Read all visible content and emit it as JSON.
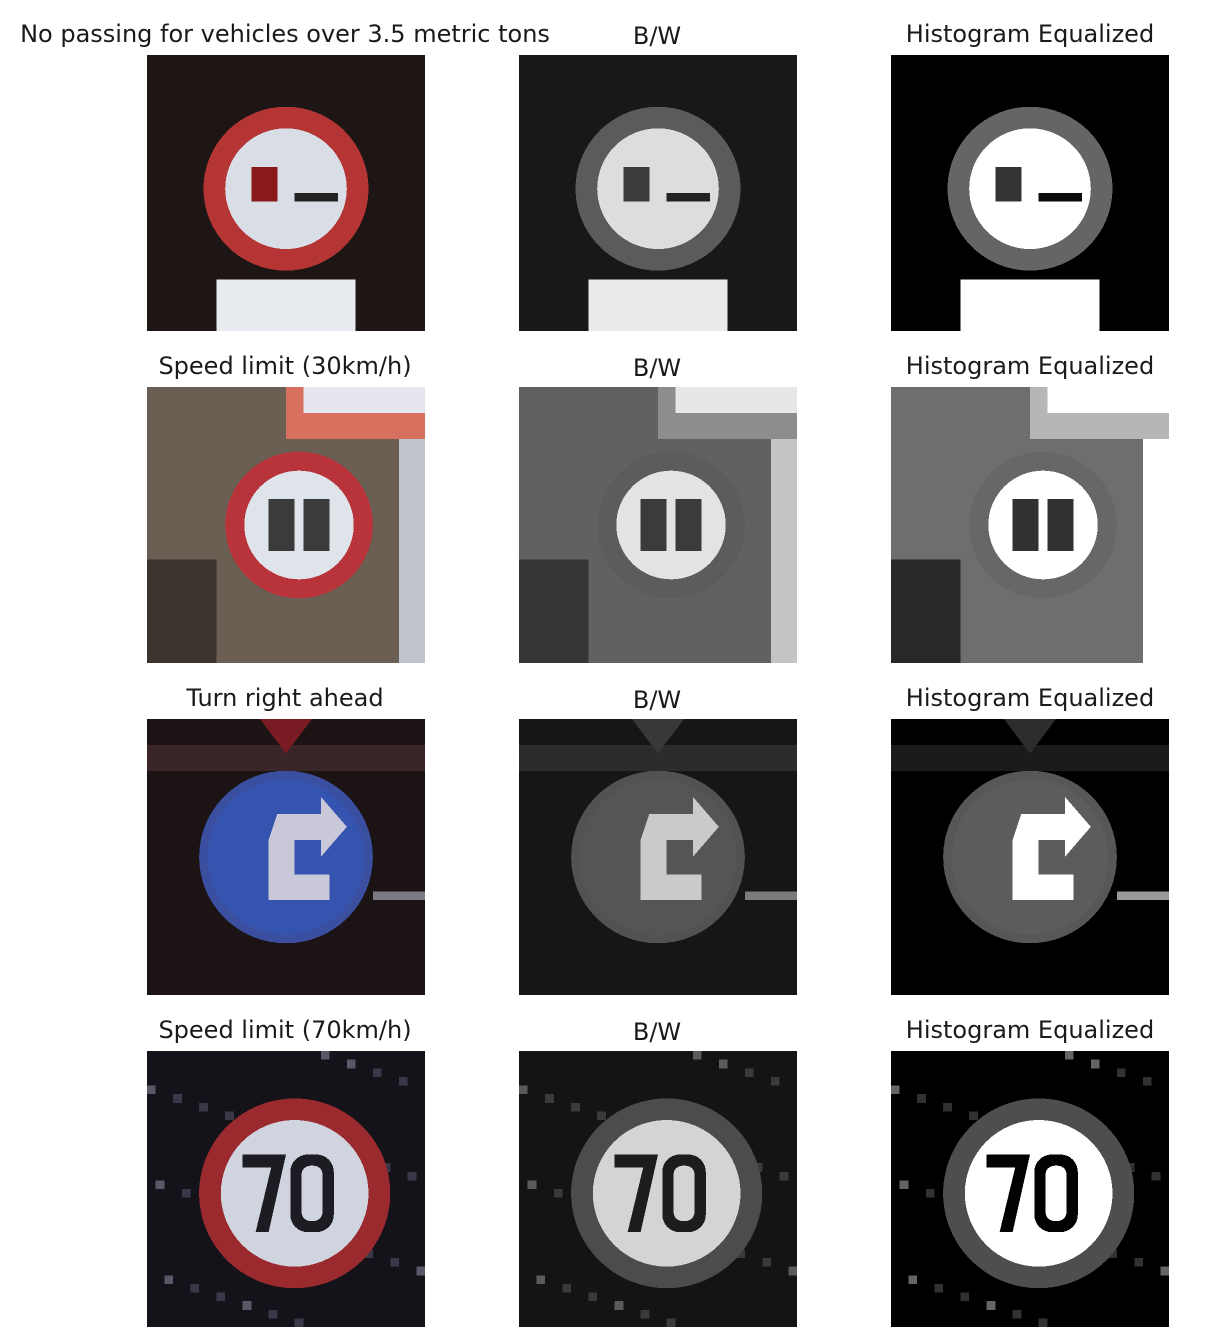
{
  "rows": [
    {
      "title": "No passing for vehicles over 3.5 metric tons",
      "bw_title": "B/W",
      "eq_title": "Histogram Equalized",
      "sign_type": "no-passing-trucks-sign",
      "colors": {
        "bg": "#1e1615",
        "ring": "#b53434",
        "inner": "#d9dde6",
        "accent": "#8a1a1a",
        "plate": "#e8ecf0"
      }
    },
    {
      "title": "Speed limit (30km/h)",
      "bw_title": "B/W",
      "eq_title": "Histogram Equalized",
      "sign_type": "speed-limit-30-sign",
      "colors": {
        "bg": "#6b5e52",
        "ring": "#b8343a",
        "inner": "#dfe3ea",
        "accent": "#3b3b3b",
        "plate": "#d87060"
      }
    },
    {
      "title": "Turn right ahead",
      "bw_title": "B/W",
      "eq_title": "Histogram Equalized",
      "sign_type": "turn-right-ahead-sign",
      "colors": {
        "bg": "#1b1314",
        "ring": "#3a4fa0",
        "inner": "#3554b0",
        "accent": "#c8c8d8",
        "plate": "#7a1a22"
      }
    },
    {
      "title": "Speed limit (70km/h)",
      "bw_title": "B/W",
      "eq_title": "Histogram Equalized",
      "sign_type": "speed-limit-70-sign",
      "colors": {
        "bg": "#15131a",
        "ring": "#9a2a2e",
        "inner": "#cfd4de",
        "accent": "#1c1c22",
        "plate": "#15131a"
      }
    }
  ]
}
